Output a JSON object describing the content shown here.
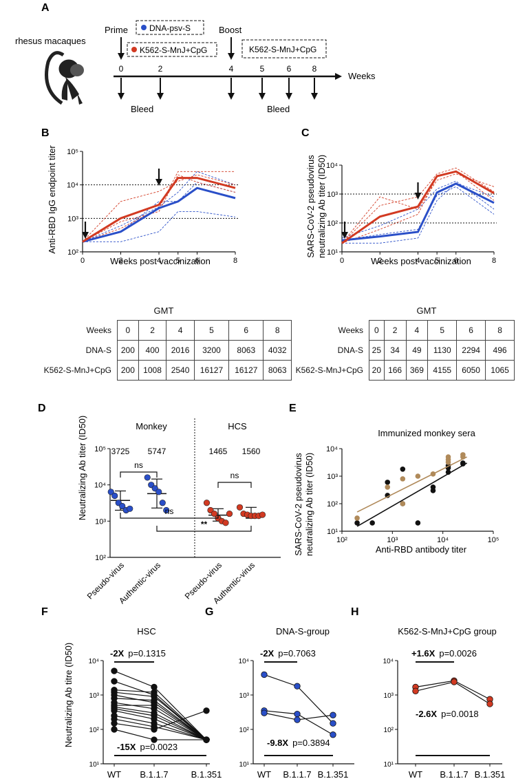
{
  "panel_labels": {
    "A": "A",
    "B": "B",
    "C": "C",
    "D": "D",
    "E": "E",
    "F": "F",
    "G": "G",
    "H": "H"
  },
  "schedule": {
    "subject": "rhesus macaques",
    "prime_label": "Prime",
    "boost_label": "Boost",
    "dna_vaccine": "DNA-psv-S",
    "k562_vaccine": "K562-S-MnJ+CpG",
    "k562_vaccine_boost": "K562-S-MnJ+CpG",
    "weeks_label": "Weeks",
    "bleed_label_1": "Bleed",
    "bleed_label_2": "Bleed",
    "week_ticks": [
      "0",
      "2",
      "4",
      "5",
      "6",
      "8"
    ],
    "dna_color": "#2a4fc8",
    "k562_color": "#d23a22"
  },
  "gmt_tables": {
    "title_b": "GMT",
    "title_c": "GMT",
    "header_label": "Weeks",
    "weeks": [
      "0",
      "2",
      "4",
      "5",
      "6",
      "8"
    ],
    "dna_label": "DNA-S",
    "k562_label": "K562-S-MnJ+CpG",
    "b_dna": [
      "200",
      "400",
      "2016",
      "3200",
      "8063",
      "4032"
    ],
    "b_k562": [
      "200",
      "1008",
      "2540",
      "16127",
      "16127",
      "8063"
    ],
    "c_dna": [
      "25",
      "34",
      "49",
      "1130",
      "2294",
      "496"
    ],
    "c_k562": [
      "20",
      "166",
      "369",
      "4155",
      "6050",
      "1065"
    ]
  },
  "chart_data": [
    {
      "id": "B",
      "type": "line",
      "title": "",
      "xlabel": "Weeks post vaccinization",
      "ylabel": "Anti-RBD IgG endpoint titer",
      "x": [
        0,
        2,
        4,
        5,
        6,
        8
      ],
      "xticks": [
        "0",
        "2",
        "4",
        "5",
        "6",
        "8"
      ],
      "yscale": "log",
      "ylim": [
        100,
        100000
      ],
      "yticks": [
        "10²",
        "10³",
        "10⁴",
        "10⁵"
      ],
      "hlines": [
        1000,
        10000
      ],
      "boost_arrows_at": [
        0,
        4
      ],
      "series": [
        {
          "name": "DNA-S GMT",
          "color": "#2a4fc8",
          "values": [
            200,
            400,
            2016,
            3200,
            8063,
            4032
          ]
        },
        {
          "name": "K562-S-MnJ+CpG GMT",
          "color": "#d23a22",
          "values": [
            200,
            1008,
            2540,
            16127,
            16127,
            8063
          ]
        }
      ],
      "individual": [
        {
          "color": "#2a4fc8",
          "values": [
            200,
            200,
            400,
            1600,
            1600,
            1100
          ]
        },
        {
          "color": "#2a4fc8",
          "values": [
            200,
            600,
            2200,
            6000,
            25000,
            10000
          ]
        },
        {
          "color": "#2a4fc8",
          "values": [
            200,
            400,
            3200,
            3200,
            12000,
            6000
          ]
        },
        {
          "color": "#d23a22",
          "values": [
            200,
            500,
            2000,
            25000,
            25000,
            25000
          ]
        },
        {
          "color": "#d23a22",
          "values": [
            200,
            3200,
            6400,
            12800,
            20000,
            10000
          ]
        },
        {
          "color": "#d23a22",
          "values": [
            200,
            800,
            1600,
            20000,
            12000,
            6000
          ]
        }
      ]
    },
    {
      "id": "C",
      "type": "line",
      "title": "",
      "xlabel": "Weeks post vaccinization",
      "ylabel_1": "SARS-CoV-2 pseudovirus",
      "ylabel_2": "neutralizing Ab titer (ID50)",
      "x": [
        0,
        2,
        4,
        5,
        6,
        8
      ],
      "xticks": [
        "0",
        "2",
        "4",
        "5",
        "6",
        "8"
      ],
      "yscale": "log",
      "ylim": [
        10,
        10000
      ],
      "yticks": [
        "10¹",
        "10²",
        "10³",
        "10⁴"
      ],
      "hlines": [
        100,
        1000
      ],
      "boost_arrows_at": [
        0,
        4
      ],
      "series": [
        {
          "name": "DNA-S GMT",
          "color": "#2a4fc8",
          "values": [
            25,
            34,
            49,
            1130,
            2294,
            496
          ]
        },
        {
          "name": "K562-S-MnJ+CpG GMT",
          "color": "#d23a22",
          "values": [
            20,
            166,
            369,
            4155,
            6050,
            1065
          ]
        }
      ],
      "individual": [
        {
          "color": "#2a4fc8",
          "values": [
            20,
            20,
            30,
            600,
            2400,
            800
          ]
        },
        {
          "color": "#2a4fc8",
          "values": [
            30,
            80,
            300,
            1500,
            2800,
            300
          ]
        },
        {
          "color": "#2a4fc8",
          "values": [
            25,
            40,
            60,
            900,
            1800,
            200
          ]
        },
        {
          "color": "#d23a22",
          "values": [
            20,
            400,
            800,
            5000,
            8000,
            1200
          ]
        },
        {
          "color": "#d23a22",
          "values": [
            20,
            800,
            300,
            3000,
            5000,
            1800
          ]
        },
        {
          "color": "#d23a22",
          "values": [
            20,
            60,
            200,
            4000,
            6000,
            600
          ]
        }
      ]
    },
    {
      "id": "D",
      "type": "scatter",
      "ylabel": "Neutralizing Ab titer (ID50)",
      "yscale": "log",
      "ylim": [
        100,
        100000
      ],
      "yticks": [
        "10²",
        "10³",
        "10⁴",
        "10⁵"
      ],
      "group_labels": [
        "Monkey",
        "HCS"
      ],
      "categories": [
        "Pseudo-virus",
        "Authentic-virus",
        "Pseudo-virus",
        "Authentic-virus"
      ],
      "gmt_labels": [
        "3725",
        "5747",
        "1465",
        "1560"
      ],
      "colors": [
        "#2a4fc8",
        "#2a4fc8",
        "#d23a22",
        "#d23a22"
      ],
      "points": [
        [
          6400,
          5000,
          3200,
          2600,
          2000,
          2200
        ],
        [
          16000,
          10000,
          8000,
          6400,
          3200,
          2000
        ],
        [
          3200,
          2000,
          1600,
          1200,
          1000,
          900,
          1600
        ],
        [
          2400,
          1600,
          1500,
          1400,
          1400,
          1400,
          1500
        ]
      ],
      "means": [
        3725,
        5747,
        1465,
        1560
      ],
      "err_low": [
        2000,
        2300,
        1000,
        1200
      ],
      "err_high": [
        6800,
        14500,
        2200,
        2400
      ],
      "sig": [
        {
          "text": "ns"
        },
        {
          "text": "ns"
        },
        {
          "text": "ns"
        },
        {
          "text": "**"
        }
      ]
    },
    {
      "id": "E",
      "type": "scatter",
      "title": "Immunized monkey sera",
      "xlabel": "Anti-RBD antibody titer",
      "ylabel_1": "SARS-CoV-2 pseudovirus",
      "ylabel_2": "neutralizing Ab titer (ID50)",
      "xscale": "log",
      "yscale": "log",
      "xlim": [
        100,
        100000
      ],
      "ylim": [
        10,
        10000
      ],
      "xticks": [
        "10²",
        "10³",
        "10⁴",
        "10⁵"
      ],
      "yticks": [
        "10¹",
        "10²",
        "10³",
        "10⁴"
      ],
      "series": [
        {
          "name": "DNA-S",
          "color": "#111111",
          "x": [
            200,
            400,
            800,
            800,
            1600,
            1600,
            3200,
            6400,
            6400,
            12800,
            12800,
            12800,
            25000,
            25000
          ],
          "y": [
            20,
            20,
            600,
            200,
            1800,
            100,
            20,
            400,
            300,
            2400,
            2000,
            1400,
            3000,
            2800
          ],
          "fit": [
            [
              200,
              15
            ],
            [
              30000,
              3000
            ]
          ]
        },
        {
          "name": "K562-S-MnJ+CpG",
          "color": "#b08a5a",
          "x": [
            200,
            800,
            1600,
            1600,
            3200,
            6400,
            12800,
            12800,
            12800,
            25000,
            25000
          ],
          "y": [
            30,
            400,
            800,
            100,
            1000,
            1200,
            5000,
            4000,
            3200,
            6000,
            5000
          ],
          "fit": [
            [
              200,
              50
            ],
            [
              30000,
              5000
            ]
          ]
        }
      ]
    },
    {
      "id": "F",
      "type": "line",
      "title": "HSC",
      "ylabel": "Neutralizing Ab titre (ID50)",
      "yscale": "log",
      "ylim": [
        10,
        10000
      ],
      "yticks": [
        "10¹",
        "10²",
        "10³",
        "10⁴"
      ],
      "categories": [
        "WT",
        "B.1.1.7",
        "B.1.351"
      ],
      "top_bracket": {
        "bold": "-2X",
        "text": "p=0.1315"
      },
      "bottom_bracket": {
        "bold": "-15X",
        "text": "p=0.0023"
      },
      "color": "#111111",
      "lines": [
        [
          5000,
          1700,
          50
        ],
        [
          2500,
          1000,
          50
        ],
        [
          1400,
          1200,
          50
        ],
        [
          1200,
          900,
          50
        ],
        [
          1000,
          600,
          50
        ],
        [
          800,
          700,
          50
        ],
        [
          600,
          400,
          50
        ],
        [
          500,
          500,
          50
        ],
        [
          450,
          300,
          50
        ],
        [
          400,
          250,
          50
        ],
        [
          350,
          200,
          50
        ],
        [
          250,
          150,
          50
        ],
        [
          200,
          120,
          50
        ],
        [
          150,
          100,
          350
        ],
        [
          100,
          50,
          50
        ]
      ]
    },
    {
      "id": "G",
      "type": "line",
      "title": "DNA-S-group",
      "yscale": "log",
      "ylim": [
        10,
        10000
      ],
      "yticks": [
        "10¹",
        "10²",
        "10³",
        "10⁴"
      ],
      "categories": [
        "WT",
        "B.1.1.7",
        "B.1.351"
      ],
      "top_bracket": {
        "bold": "-2X",
        "text": "p=0.7063"
      },
      "bottom_bracket": {
        "bold": "-9.8X",
        "text": "p=0.3894"
      },
      "color": "#2a4fc8",
      "lines": [
        [
          3900,
          1800,
          150
        ],
        [
          350,
          280,
          70
        ],
        [
          300,
          190,
          260
        ]
      ]
    },
    {
      "id": "H",
      "type": "line",
      "title": "K562-S-MnJ+CpG group",
      "yscale": "log",
      "ylim": [
        10,
        10000
      ],
      "yticks": [
        "10¹",
        "10²",
        "10³",
        "10⁴"
      ],
      "categories": [
        "WT",
        "B.1.1.7",
        "B.1.351"
      ],
      "top_bracket": {
        "bold": "+1.6X",
        "text": "p=0.0026"
      },
      "bottom_bracket": {
        "bold": "-2.6X",
        "text": "p=0.0018"
      },
      "color": "#d23a22",
      "lines": [
        [
          1700,
          2600,
          750
        ],
        [
          1300,
          2400,
          550
        ]
      ]
    }
  ]
}
